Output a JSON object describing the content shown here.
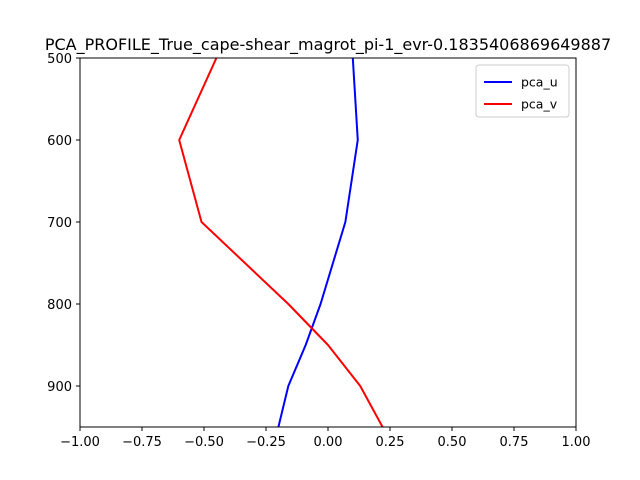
{
  "chart_data": {
    "type": "line",
    "title": "PCA_PROFILE_True_cape-shear_magrot_pi-1_evr-0.1835406869649887",
    "xlabel": "",
    "ylabel": "",
    "xlim": [
      -1.0,
      1.0
    ],
    "ylim": [
      950,
      500
    ],
    "y_inverted": true,
    "grid": false,
    "legend_position": "upper right",
    "xticks": [
      -1.0,
      -0.75,
      -0.5,
      -0.25,
      0.0,
      0.25,
      0.5,
      0.75,
      1.0
    ],
    "xtick_labels": [
      "−1.00",
      "−0.75",
      "−0.50",
      "−0.25",
      "0.00",
      "0.25",
      "0.50",
      "0.75",
      "1.00"
    ],
    "yticks": [
      500,
      600,
      700,
      800,
      900
    ],
    "ytick_labels": [
      "500",
      "600",
      "700",
      "800",
      "900"
    ],
    "series": [
      {
        "name": "pca_u",
        "color": "#0000ff",
        "points": [
          {
            "x": 0.1,
            "y": 500
          },
          {
            "x": 0.12,
            "y": 600
          },
          {
            "x": 0.07,
            "y": 700
          },
          {
            "x": -0.03,
            "y": 800
          },
          {
            "x": -0.09,
            "y": 850
          },
          {
            "x": -0.16,
            "y": 900
          },
          {
            "x": -0.2,
            "y": 950
          }
        ]
      },
      {
        "name": "pca_v",
        "color": "#ff0000",
        "points": [
          {
            "x": -0.45,
            "y": 500
          },
          {
            "x": -0.6,
            "y": 600
          },
          {
            "x": -0.51,
            "y": 700
          },
          {
            "x": -0.16,
            "y": 800
          },
          {
            "x": 0.0,
            "y": 850
          },
          {
            "x": 0.13,
            "y": 900
          },
          {
            "x": 0.22,
            "y": 950
          }
        ]
      }
    ]
  }
}
